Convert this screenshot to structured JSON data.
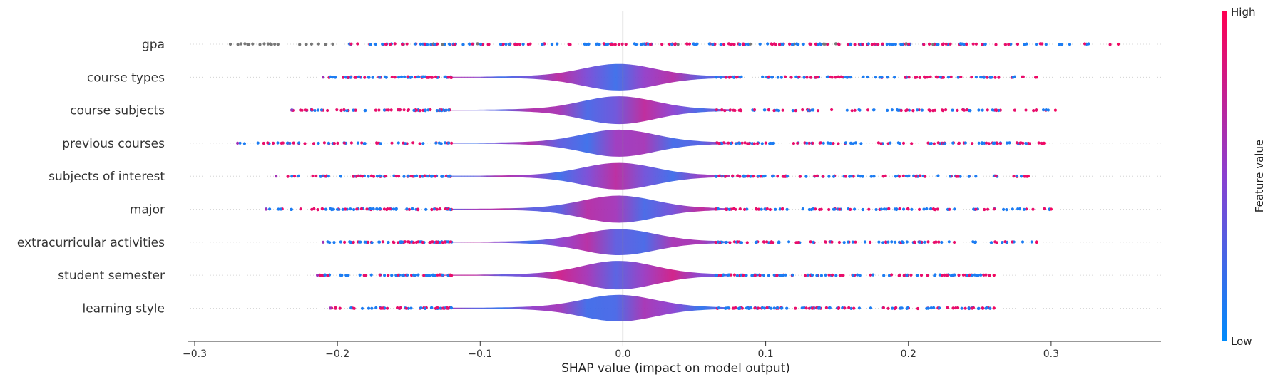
{
  "chart_data": {
    "type": "violin",
    "subtype": "SHAP summary violin plot",
    "xlabel": "SHAP value (impact on model output)",
    "xticks": [
      -0.3,
      -0.2,
      -0.1,
      0.0,
      0.1,
      0.2,
      0.3
    ],
    "xtick_labels": [
      "−0.3",
      "−0.2",
      "−0.1",
      "0.0",
      "0.1",
      "0.2",
      "0.3"
    ],
    "xlim": [
      -0.305,
      0.377
    ],
    "zero_line": 0.0,
    "colorbar": {
      "label": "Feature value",
      "high_label": "High",
      "low_label": "Low",
      "colors": [
        "#008bfb",
        "#ff0052"
      ]
    },
    "features": [
      {
        "name": "gpa",
        "width": 0.0,
        "range": [
          -0.275,
          0.347
        ],
        "bias": 0.0
      },
      {
        "name": "course types",
        "width": 0.7,
        "range": [
          -0.21,
          0.29
        ],
        "bias": 0.0
      },
      {
        "name": "course subjects",
        "width": 0.75,
        "range": [
          -0.232,
          0.303
        ],
        "bias": 0.05
      },
      {
        "name": "previous courses",
        "width": 0.72,
        "range": [
          -0.27,
          0.295
        ],
        "bias": -0.05
      },
      {
        "name": "subjects of interest",
        "width": 0.7,
        "range": [
          -0.243,
          0.284
        ],
        "bias": 0.0
      },
      {
        "name": "major",
        "width": 0.72,
        "range": [
          -0.25,
          0.3
        ],
        "bias": 0.05
      },
      {
        "name": "extracurricular activities",
        "width": 0.68,
        "range": [
          -0.21,
          0.29
        ],
        "bias": 0.0
      },
      {
        "name": "student semester",
        "width": 0.78,
        "range": [
          -0.214,
          0.26
        ],
        "bias": 0.2
      },
      {
        "name": "learning style",
        "width": 0.7,
        "range": [
          -0.205,
          0.26
        ],
        "bias": -0.1
      }
    ]
  }
}
